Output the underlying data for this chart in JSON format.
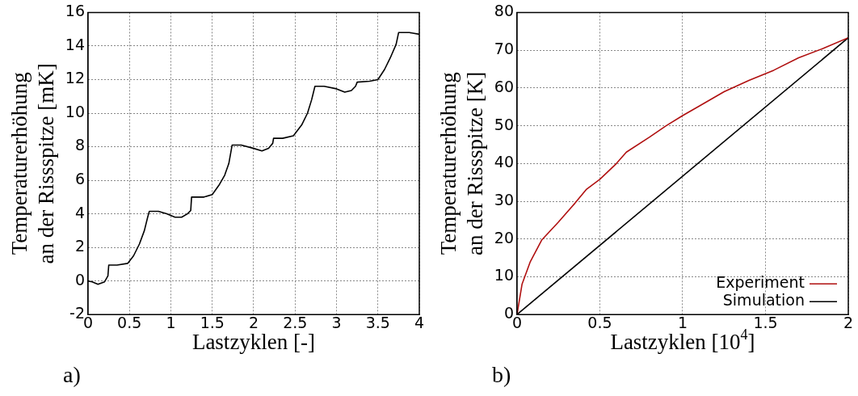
{
  "chart_data": [
    {
      "type": "line",
      "xlabel": "Lastzyklen [-]",
      "ylabel": "Temperaturerhöhung\nan der Rissspitze [mK]",
      "annotations": [
        "a)"
      ],
      "xlim": [
        0,
        4
      ],
      "xticks": [
        0,
        0.5,
        1,
        1.5,
        2,
        2.5,
        3,
        3.5,
        4
      ],
      "ylim": [
        -2,
        16
      ],
      "yticks": [
        -2,
        0,
        2,
        4,
        6,
        8,
        10,
        12,
        14,
        16
      ],
      "grid": true,
      "legend": false,
      "marker": "none",
      "line_style": "solid",
      "series": [
        {
          "color": "#000000",
          "x": [
            0,
            0.05,
            0.12,
            0.2,
            0.24,
            0.25,
            0.35,
            0.48,
            0.55,
            0.62,
            0.68,
            0.72,
            0.74,
            0.85,
            0.95,
            1.05,
            1.13,
            1.2,
            1.24,
            1.25,
            1.4,
            1.5,
            1.58,
            1.65,
            1.7,
            1.74,
            1.85,
            2.0,
            2.1,
            2.18,
            2.23,
            2.24,
            2.35,
            2.48,
            2.58,
            2.65,
            2.7,
            2.74,
            2.85,
            3.0,
            3.1,
            3.18,
            3.23,
            3.25,
            3.4,
            3.5,
            3.58,
            3.65,
            3.72,
            3.75,
            3.88,
            4.0
          ],
          "values": [
            0,
            -0.05,
            -0.2,
            -0.05,
            0.3,
            0.95,
            0.95,
            1.05,
            1.5,
            2.2,
            3.0,
            3.8,
            4.15,
            4.15,
            4.0,
            3.8,
            3.8,
            4.0,
            4.2,
            5.0,
            5.0,
            5.15,
            5.7,
            6.3,
            7.0,
            8.1,
            8.1,
            7.9,
            7.75,
            7.9,
            8.2,
            8.5,
            8.5,
            8.65,
            9.3,
            10.0,
            10.8,
            11.6,
            11.6,
            11.45,
            11.25,
            11.35,
            11.6,
            11.85,
            11.9,
            12.0,
            12.6,
            13.3,
            14.1,
            14.8,
            14.8,
            14.7
          ]
        }
      ]
    },
    {
      "type": "line",
      "xlabel": "Lastzyklen [10$^{4}$]",
      "ylabel": "Temperaturerhöhung\nan der Rissspitze [K]",
      "annotations": [
        "b)"
      ],
      "xlim": [
        0,
        2
      ],
      "xticks": [
        0,
        0.5,
        1,
        1.5,
        2
      ],
      "ylim": [
        0,
        80
      ],
      "yticks": [
        0,
        10,
        20,
        30,
        40,
        50,
        60,
        70,
        80
      ],
      "grid": true,
      "legend": "bottom right",
      "marker": "none",
      "line_style": "solid",
      "series": [
        {
          "name": "Experiment",
          "color": "#b01010",
          "x": [
            0,
            0.03,
            0.08,
            0.15,
            0.25,
            0.35,
            0.42,
            0.5,
            0.6,
            0.66,
            0.8,
            0.9,
            1.0,
            1.1,
            1.25,
            1.4,
            1.55,
            1.7,
            1.85,
            2.0
          ],
          "values": [
            0,
            8,
            14,
            19.8,
            24.5,
            29.5,
            33.2,
            35.8,
            40,
            43,
            47,
            50,
            52.7,
            55.2,
            59,
            62,
            64.7,
            68,
            70.5,
            73.3
          ]
        },
        {
          "name": "Simulation",
          "color": "#000000",
          "x": [
            0,
            2
          ],
          "values": [
            0,
            73.3
          ]
        }
      ]
    }
  ]
}
